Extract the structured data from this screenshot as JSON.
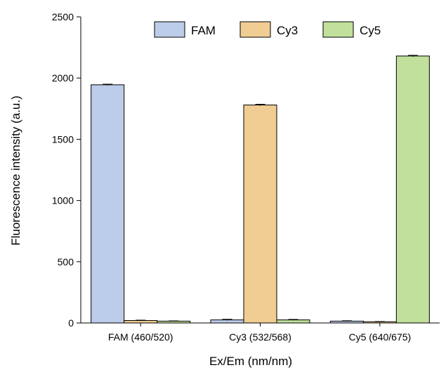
{
  "chart_data": {
    "type": "bar",
    "title": "",
    "xlabel": "Ex/Em (nm/nm)",
    "ylabel": "Fluorescence intensity (a.u.)",
    "ylim": [
      0,
      2500
    ],
    "yticks": [
      0,
      500,
      1000,
      1500,
      2000,
      2500
    ],
    "categories": [
      "FAM (460/520)",
      "Cy3 (532/568)",
      "Cy5 (640/675)"
    ],
    "legend_position": "top",
    "grid": false,
    "series": [
      {
        "name": "FAM",
        "color": "#bccde9",
        "values": [
          1945,
          25,
          15
        ],
        "errors": [
          5,
          5,
          3
        ]
      },
      {
        "name": "Cy3",
        "color": "#f0cd92",
        "values": [
          20,
          1780,
          10
        ],
        "errors": [
          3,
          6,
          2
        ]
      },
      {
        "name": "Cy5",
        "color": "#c0e09b",
        "values": [
          15,
          25,
          2180
        ],
        "errors": [
          2,
          4,
          6
        ]
      }
    ]
  }
}
